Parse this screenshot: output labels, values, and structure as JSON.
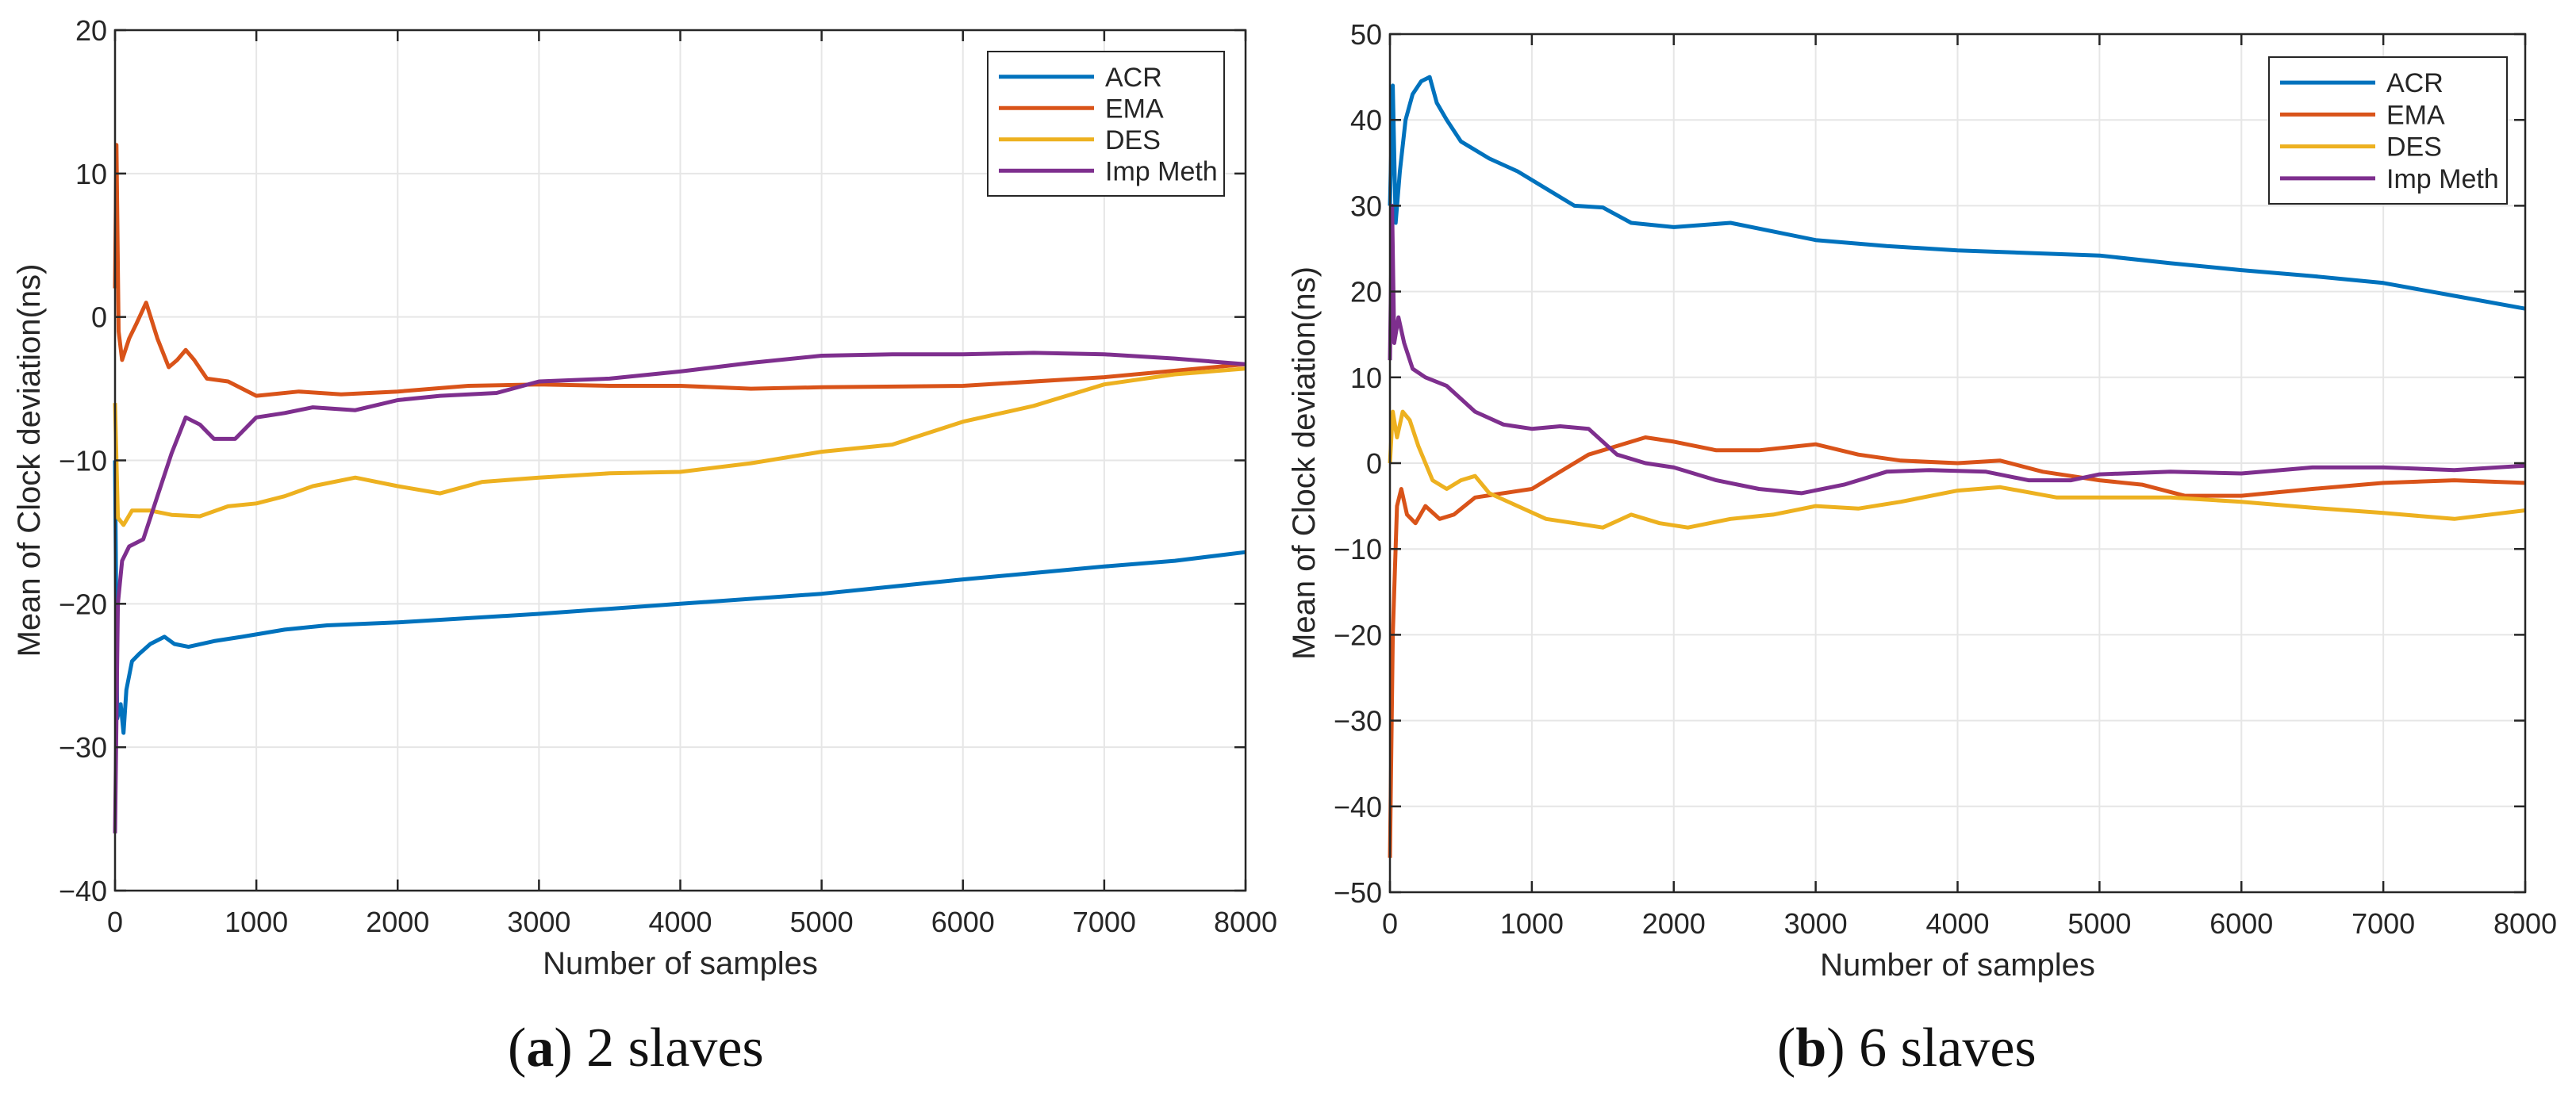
{
  "chart_data": [
    {
      "type": "line",
      "panel": "a",
      "caption": "2 slaves",
      "xlabel": "Number of samples",
      "ylabel": "Mean of Clock deviation(ns)",
      "xlim": [
        0,
        8000
      ],
      "ylim": [
        -40,
        20
      ],
      "xticks": [
        0,
        1000,
        2000,
        3000,
        4000,
        5000,
        6000,
        7000,
        8000
      ],
      "yticks": [
        -40,
        -30,
        -20,
        -10,
        0,
        10,
        20
      ],
      "grid": true,
      "legend": "top-right",
      "series": [
        {
          "name": "ACR",
          "color": "#0072BD",
          "points": [
            [
              0,
              -10
            ],
            [
              15,
              -28
            ],
            [
              40,
              -27
            ],
            [
              60,
              -29
            ],
            [
              80,
              -26
            ],
            [
              120,
              -24
            ],
            [
              170,
              -23.5
            ],
            [
              250,
              -22.8
            ],
            [
              350,
              -22.3
            ],
            [
              420,
              -22.8
            ],
            [
              520,
              -23
            ],
            [
              700,
              -22.6
            ],
            [
              900,
              -22.3
            ],
            [
              1200,
              -21.8
            ],
            [
              1500,
              -21.5
            ],
            [
              2000,
              -21.3
            ],
            [
              3000,
              -20.7
            ],
            [
              4000,
              -20
            ],
            [
              5000,
              -19.3
            ],
            [
              6000,
              -18.3
            ],
            [
              7000,
              -17.4
            ],
            [
              7500,
              -17
            ],
            [
              8000,
              -16.4
            ]
          ]
        },
        {
          "name": "EMA",
          "color": "#D95319",
          "points": [
            [
              0,
              2
            ],
            [
              10,
              12
            ],
            [
              25,
              -1
            ],
            [
              50,
              -3
            ],
            [
              100,
              -1.5
            ],
            [
              150,
              -0.5
            ],
            [
              220,
              1
            ],
            [
              300,
              -1.5
            ],
            [
              380,
              -3.5
            ],
            [
              440,
              -3
            ],
            [
              500,
              -2.3
            ],
            [
              560,
              -3
            ],
            [
              650,
              -4.3
            ],
            [
              800,
              -4.5
            ],
            [
              1000,
              -5.5
            ],
            [
              1300,
              -5.2
            ],
            [
              1600,
              -5.4
            ],
            [
              2000,
              -5.2
            ],
            [
              2500,
              -4.8
            ],
            [
              3000,
              -4.7
            ],
            [
              3500,
              -4.8
            ],
            [
              4000,
              -4.8
            ],
            [
              4500,
              -5
            ],
            [
              5000,
              -4.9
            ],
            [
              6000,
              -4.8
            ],
            [
              7000,
              -4.2
            ],
            [
              8000,
              -3.3
            ]
          ]
        },
        {
          "name": "DES",
          "color": "#EDB120",
          "points": [
            [
              0,
              -6
            ],
            [
              20,
              -14
            ],
            [
              60,
              -14.5
            ],
            [
              120,
              -13.5
            ],
            [
              250,
              -13.5
            ],
            [
              400,
              -13.8
            ],
            [
              600,
              -13.9
            ],
            [
              800,
              -13.2
            ],
            [
              1000,
              -13
            ],
            [
              1200,
              -12.5
            ],
            [
              1400,
              -11.8
            ],
            [
              1700,
              -11.2
            ],
            [
              2000,
              -11.8
            ],
            [
              2300,
              -12.3
            ],
            [
              2600,
              -11.5
            ],
            [
              3000,
              -11.2
            ],
            [
              3500,
              -10.9
            ],
            [
              4000,
              -10.8
            ],
            [
              4500,
              -10.2
            ],
            [
              5000,
              -9.4
            ],
            [
              5500,
              -8.9
            ],
            [
              6000,
              -7.3
            ],
            [
              6500,
              -6.2
            ],
            [
              7000,
              -4.7
            ],
            [
              7500,
              -4
            ],
            [
              8000,
              -3.6
            ]
          ]
        },
        {
          "name": "Imp Meth",
          "color": "#7E2F8E",
          "points": [
            [
              0,
              -36
            ],
            [
              20,
              -20
            ],
            [
              50,
              -17
            ],
            [
              100,
              -16
            ],
            [
              200,
              -15.5
            ],
            [
              300,
              -12.5
            ],
            [
              400,
              -9.5
            ],
            [
              500,
              -7
            ],
            [
              600,
              -7.5
            ],
            [
              700,
              -8.5
            ],
            [
              850,
              -8.5
            ],
            [
              1000,
              -7
            ],
            [
              1200,
              -6.7
            ],
            [
              1400,
              -6.3
            ],
            [
              1700,
              -6.5
            ],
            [
              2000,
              -5.8
            ],
            [
              2300,
              -5.5
            ],
            [
              2700,
              -5.3
            ],
            [
              3000,
              -4.5
            ],
            [
              3500,
              -4.3
            ],
            [
              4000,
              -3.8
            ],
            [
              4500,
              -3.2
            ],
            [
              5000,
              -2.7
            ],
            [
              5500,
              -2.6
            ],
            [
              6000,
              -2.6
            ],
            [
              6500,
              -2.5
            ],
            [
              7000,
              -2.6
            ],
            [
              7500,
              -2.9
            ],
            [
              8000,
              -3.3
            ]
          ]
        }
      ]
    },
    {
      "type": "line",
      "panel": "b",
      "caption": "6 slaves",
      "xlabel": "Number of samples",
      "ylabel": "Mean of Clock deviation(ns)",
      "xlim": [
        0,
        8000
      ],
      "ylim": [
        -50,
        50
      ],
      "xticks": [
        0,
        1000,
        2000,
        3000,
        4000,
        5000,
        6000,
        7000,
        8000
      ],
      "yticks": [
        -50,
        -40,
        -30,
        -20,
        -10,
        0,
        10,
        20,
        30,
        40,
        50
      ],
      "grid": true,
      "legend": "top-right",
      "series": [
        {
          "name": "ACR",
          "color": "#0072BD",
          "points": [
            [
              0,
              30
            ],
            [
              20,
              44
            ],
            [
              40,
              28
            ],
            [
              70,
              34
            ],
            [
              110,
              40
            ],
            [
              160,
              43
            ],
            [
              220,
              44.5
            ],
            [
              280,
              45
            ],
            [
              330,
              42
            ],
            [
              400,
              40
            ],
            [
              500,
              37.5
            ],
            [
              700,
              35.5
            ],
            [
              900,
              34
            ],
            [
              1100,
              32
            ],
            [
              1300,
              30
            ],
            [
              1500,
              29.8
            ],
            [
              1700,
              28
            ],
            [
              2000,
              27.5
            ],
            [
              2400,
              28
            ],
            [
              3000,
              26
            ],
            [
              3500,
              25.3
            ],
            [
              4000,
              24.8
            ],
            [
              5000,
              24.2
            ],
            [
              5500,
              23.3
            ],
            [
              6000,
              22.5
            ],
            [
              6500,
              21.8
            ],
            [
              7000,
              21
            ],
            [
              7500,
              19.5
            ],
            [
              8000,
              18
            ]
          ]
        },
        {
          "name": "EMA",
          "color": "#D95319",
          "points": [
            [
              0,
              -46
            ],
            [
              20,
              -20
            ],
            [
              50,
              -5
            ],
            [
              80,
              -3
            ],
            [
              120,
              -6
            ],
            [
              180,
              -7
            ],
            [
              250,
              -5
            ],
            [
              350,
              -6.5
            ],
            [
              450,
              -6
            ],
            [
              600,
              -4
            ],
            [
              800,
              -3.5
            ],
            [
              1000,
              -3
            ],
            [
              1200,
              -1
            ],
            [
              1400,
              1
            ],
            [
              1600,
              2
            ],
            [
              1800,
              3
            ],
            [
              2000,
              2.5
            ],
            [
              2300,
              1.5
            ],
            [
              2600,
              1.5
            ],
            [
              3000,
              2.2
            ],
            [
              3300,
              1
            ],
            [
              3600,
              0.3
            ],
            [
              4000,
              0
            ],
            [
              4300,
              0.3
            ],
            [
              4600,
              -1
            ],
            [
              5000,
              -2
            ],
            [
              5300,
              -2.5
            ],
            [
              5600,
              -3.8
            ],
            [
              6000,
              -3.8
            ],
            [
              6500,
              -3
            ],
            [
              7000,
              -2.3
            ],
            [
              7500,
              -2
            ],
            [
              8000,
              -2.3
            ]
          ]
        },
        {
          "name": "DES",
          "color": "#EDB120",
          "points": [
            [
              0,
              0
            ],
            [
              20,
              6
            ],
            [
              50,
              3
            ],
            [
              90,
              6
            ],
            [
              140,
              5
            ],
            [
              200,
              2
            ],
            [
              300,
              -2
            ],
            [
              400,
              -3
            ],
            [
              500,
              -2
            ],
            [
              600,
              -1.5
            ],
            [
              700,
              -3.5
            ],
            [
              900,
              -5
            ],
            [
              1100,
              -6.5
            ],
            [
              1300,
              -7
            ],
            [
              1500,
              -7.5
            ],
            [
              1700,
              -6
            ],
            [
              1900,
              -7
            ],
            [
              2100,
              -7.5
            ],
            [
              2400,
              -6.5
            ],
            [
              2700,
              -6
            ],
            [
              3000,
              -5
            ],
            [
              3300,
              -5.3
            ],
            [
              3600,
              -4.5
            ],
            [
              4000,
              -3.2
            ],
            [
              4300,
              -2.8
            ],
            [
              4700,
              -4
            ],
            [
              5000,
              -4
            ],
            [
              5500,
              -4
            ],
            [
              6000,
              -4.5
            ],
            [
              6500,
              -5.2
            ],
            [
              7000,
              -5.8
            ],
            [
              7500,
              -6.5
            ],
            [
              8000,
              -5.5
            ]
          ]
        },
        {
          "name": "Imp Meth",
          "color": "#7E2F8E",
          "points": [
            [
              0,
              12
            ],
            [
              15,
              30
            ],
            [
              30,
              14
            ],
            [
              60,
              17
            ],
            [
              100,
              14
            ],
            [
              160,
              11
            ],
            [
              250,
              10
            ],
            [
              400,
              9
            ],
            [
              600,
              6
            ],
            [
              800,
              4.5
            ],
            [
              1000,
              4
            ],
            [
              1200,
              4.3
            ],
            [
              1400,
              4
            ],
            [
              1600,
              1
            ],
            [
              1800,
              0
            ],
            [
              2000,
              -0.5
            ],
            [
              2300,
              -2
            ],
            [
              2600,
              -3
            ],
            [
              2900,
              -3.5
            ],
            [
              3200,
              -2.5
            ],
            [
              3500,
              -1
            ],
            [
              3800,
              -0.8
            ],
            [
              4200,
              -1
            ],
            [
              4500,
              -2
            ],
            [
              4800,
              -2
            ],
            [
              5000,
              -1.3
            ],
            [
              5500,
              -1
            ],
            [
              6000,
              -1.2
            ],
            [
              6500,
              -0.5
            ],
            [
              7000,
              -0.5
            ],
            [
              7500,
              -0.8
            ],
            [
              8000,
              -0.3
            ]
          ]
        }
      ]
    }
  ]
}
